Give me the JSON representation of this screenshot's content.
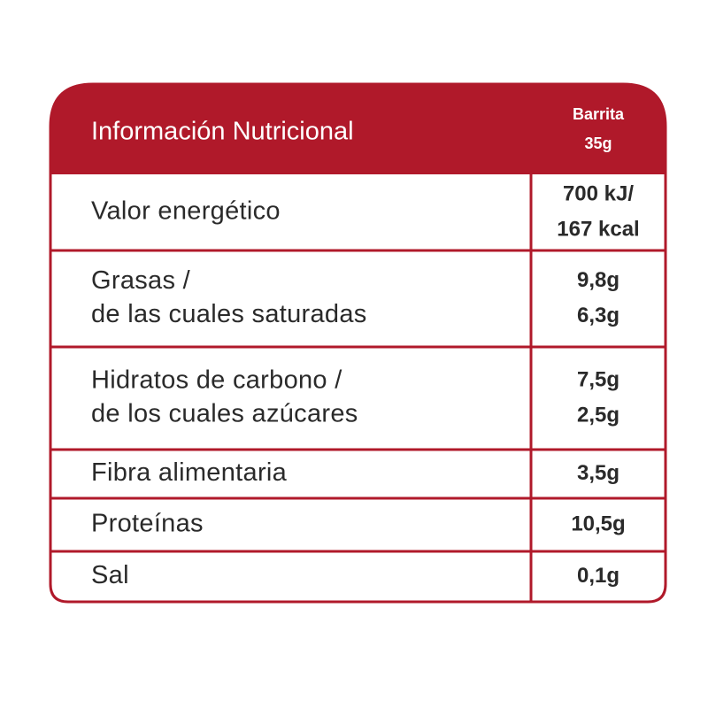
{
  "header": {
    "title": "Información Nutricional",
    "column": [
      "Barrita",
      "35g"
    ]
  },
  "rows": [
    {
      "label": [
        "Valor energético"
      ],
      "value": [
        "700 kJ/",
        "167 kcal"
      ]
    },
    {
      "label": [
        "Grasas /",
        "de las cuales saturadas"
      ],
      "value": [
        "9,8g",
        "6,3g"
      ]
    },
    {
      "label": [
        "Hidratos de carbono /",
        "de los cuales azúcares"
      ],
      "value": [
        "7,5g",
        "2,5g"
      ]
    },
    {
      "label": [
        "Fibra alimentaria"
      ],
      "value": [
        "3,5g"
      ]
    },
    {
      "label": [
        "Proteínas"
      ],
      "value": [
        "10,5g"
      ]
    },
    {
      "label": [
        "Sal"
      ],
      "value": [
        "0,1g"
      ]
    }
  ]
}
